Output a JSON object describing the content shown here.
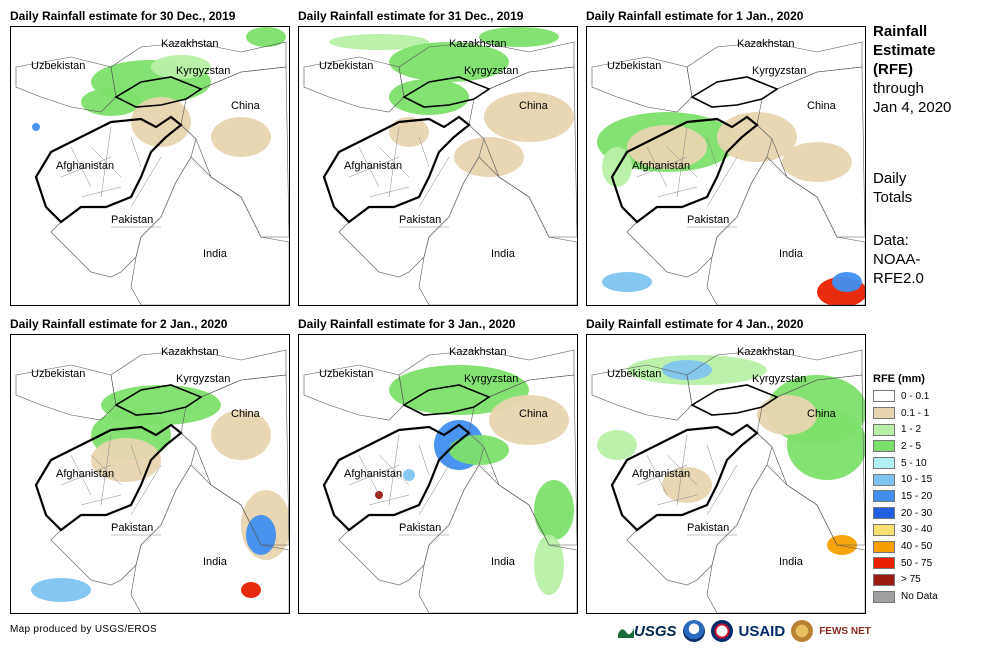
{
  "panels": [
    {
      "title": "Daily Rainfall estimate for 30 Dec., 2019"
    },
    {
      "title": "Daily Rainfall estimate for 31 Dec., 2019"
    },
    {
      "title": "Daily Rainfall estimate for 1 Jan., 2020"
    },
    {
      "title": "Daily Rainfall estimate for 2 Jan., 2020"
    },
    {
      "title": "Daily Rainfall estimate for 3 Jan., 2020"
    },
    {
      "title": "Daily Rainfall estimate for 4 Jan., 2020"
    }
  ],
  "map_labels": {
    "kazakhstan": "Kazakhstan",
    "uzbekistan": "Uzbekistan",
    "kyrgyzstan": "Kyrgyzstan",
    "china": "China",
    "afghanistan": "Afghanistan",
    "pakistan": "Pakistan",
    "india": "India"
  },
  "sidebar": {
    "title_lines": [
      "Rainfall",
      "Estimate",
      "(RFE)"
    ],
    "through_lines": [
      "through",
      "Jan 4, 2020"
    ],
    "daily_lines": [
      "Daily",
      "Totals"
    ],
    "data_lines": [
      "Data:",
      "NOAA-",
      "RFE2.0"
    ]
  },
  "legend": {
    "title": "RFE (mm)",
    "items": [
      {
        "label": "0 - 0.1",
        "color": "#ffffff"
      },
      {
        "label": "0.1 - 1",
        "color": "#e8d5b0"
      },
      {
        "label": "1 - 2",
        "color": "#b8f0a8"
      },
      {
        "label": "2 - 5",
        "color": "#7de06a"
      },
      {
        "label": "5 - 10",
        "color": "#b0f0f5"
      },
      {
        "label": "10 - 15",
        "color": "#7fc4f0"
      },
      {
        "label": "15 - 20",
        "color": "#3f8ff0"
      },
      {
        "label": "20 - 30",
        "color": "#1f5fe0"
      },
      {
        "label": "30 - 40",
        "color": "#f8e070"
      },
      {
        "label": "40 - 50",
        "color": "#f5a000"
      },
      {
        "label": "50 - 75",
        "color": "#e82000"
      },
      {
        "label": "> 75",
        "color": "#9a1a10"
      },
      {
        "label": "No Data",
        "color": "#a0a0a0"
      }
    ]
  },
  "footer": {
    "credit": "Map produced by USGS/EROS"
  },
  "logos": {
    "usgs": "USGS",
    "usaid": "USAID",
    "fews": "FEWS NET"
  }
}
